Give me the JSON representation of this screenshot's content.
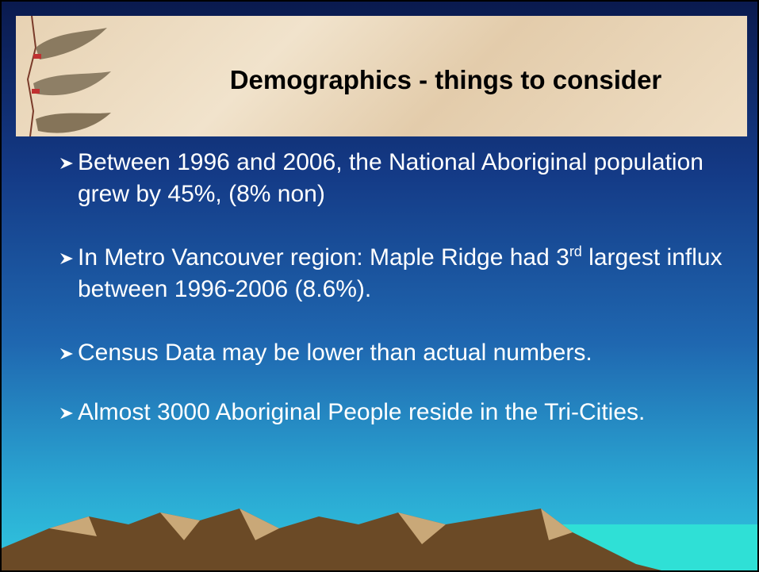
{
  "header": {
    "title": "Demographics - things to consider"
  },
  "bullets": [
    {
      "text": "Between 1996 and 2006, the National Aboriginal population grew by 45%, (8% non)"
    },
    {
      "parts": [
        "In Metro Vancouver region: Maple Ridge had 3",
        "rd",
        " largest influx between 1996-2006 (8.6%)."
      ]
    },
    {
      "text": "Census Data may be lower than actual numbers."
    },
    {
      "text": "Almost 3000 Aboriginal People reside in the Tri-Cities."
    }
  ]
}
